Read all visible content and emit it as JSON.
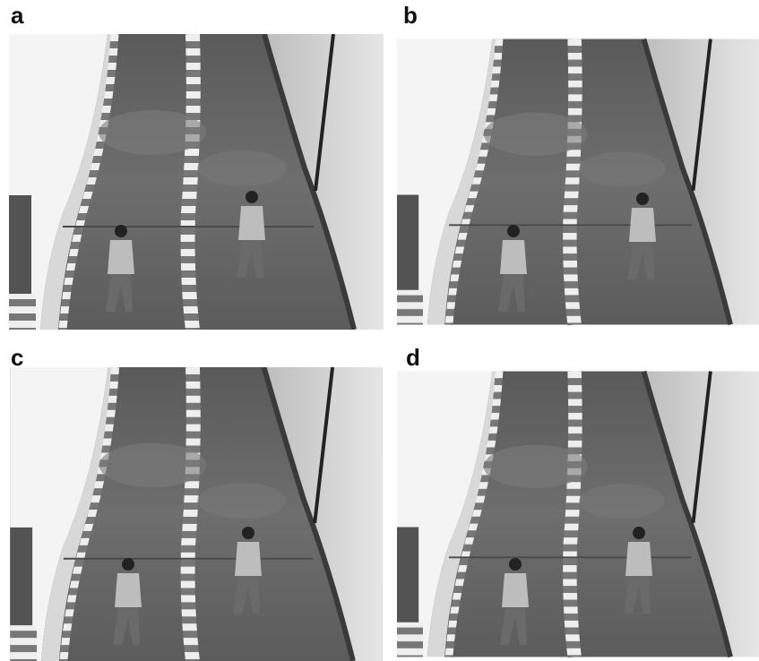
{
  "panels": [
    {
      "label": "a"
    },
    {
      "label": "b"
    },
    {
      "label": "c"
    },
    {
      "label": "d"
    }
  ]
}
